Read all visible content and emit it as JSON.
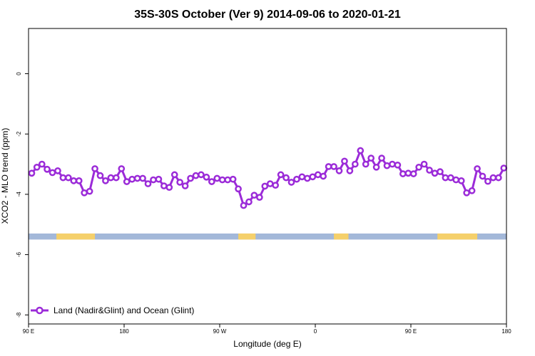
{
  "chart_data": {
    "type": "line",
    "title": "35S-30S October (Ver 9)   2014-09-06 to 2020-01-21",
    "xlabel": "Longitude (deg E)",
    "ylabel": "XCO2 - MLO trend (ppm)",
    "xlim": [
      90,
      450
    ],
    "ylim": [
      -8.3,
      1.5
    ],
    "x_ticks": [
      {
        "value": 90,
        "label": "90 E"
      },
      {
        "value": 162,
        "label": "180"
      },
      {
        "value": 234,
        "label": "90 W"
      },
      {
        "value": 306,
        "label": "0"
      },
      {
        "value": 378,
        "label": "90 E"
      },
      {
        "value": 450,
        "label": "180"
      }
    ],
    "y_ticks": [
      {
        "value": 0,
        "label": "0"
      },
      {
        "value": -2,
        "label": "-2"
      },
      {
        "value": -4,
        "label": "-4"
      },
      {
        "value": -6,
        "label": "-6"
      },
      {
        "value": -8,
        "label": "-8"
      }
    ],
    "grid": false,
    "legend_position": "bottom-left",
    "series": [
      {
        "name": "Land (Nadir&Glint) and Ocean (Glint)",
        "color": "#9b2bd8",
        "x": [
          92.4,
          96.3,
          100.1,
          104,
          108,
          112,
          116,
          120,
          124,
          128,
          132,
          136,
          140,
          144,
          148,
          152,
          156,
          160,
          164,
          168,
          172,
          176,
          180,
          184,
          188,
          192,
          196,
          200,
          204,
          208,
          212,
          216,
          220,
          224,
          228,
          232,
          236,
          240,
          244,
          248,
          252,
          256,
          260,
          264,
          268,
          272,
          276,
          280,
          284,
          288,
          292,
          296,
          300,
          304,
          308,
          312,
          316,
          320,
          324,
          328,
          332,
          336,
          340,
          344,
          348,
          352,
          356,
          360,
          364,
          368,
          372,
          376,
          380,
          384,
          388,
          392,
          396,
          400,
          404,
          408,
          412,
          416,
          420,
          424,
          428,
          432,
          436,
          440,
          444,
          448
        ],
        "y": [
          -3.3,
          -3.1,
          -3.0,
          -3.17,
          -3.28,
          -3.22,
          -3.45,
          -3.45,
          -3.55,
          -3.55,
          -3.95,
          -3.9,
          -3.15,
          -3.38,
          -3.55,
          -3.45,
          -3.45,
          -3.15,
          -3.58,
          -3.5,
          -3.47,
          -3.47,
          -3.65,
          -3.52,
          -3.5,
          -3.72,
          -3.77,
          -3.35,
          -3.6,
          -3.72,
          -3.47,
          -3.38,
          -3.35,
          -3.43,
          -3.58,
          -3.47,
          -3.52,
          -3.52,
          -3.5,
          -3.82,
          -4.37,
          -4.25,
          -4.03,
          -4.1,
          -3.73,
          -3.65,
          -3.7,
          -3.35,
          -3.45,
          -3.6,
          -3.5,
          -3.42,
          -3.47,
          -3.42,
          -3.35,
          -3.4,
          -3.08,
          -3.08,
          -3.22,
          -2.9,
          -3.22,
          -3.0,
          -2.55,
          -3.0,
          -2.8,
          -3.1,
          -2.8,
          -3.05,
          -3.0,
          -3.03,
          -3.32,
          -3.3,
          -3.32,
          -3.1,
          -3.0,
          -3.2,
          -3.3,
          -3.25,
          -3.45,
          -3.45,
          -3.52,
          -3.55,
          -3.95,
          -3.88,
          -3.15,
          -3.4,
          -3.57,
          -3.45,
          -3.45,
          -3.13
        ]
      }
    ],
    "land_ocean_strip": {
      "y_range": [
        -5.3,
        -5.5
      ],
      "ocean_color": "#a3b8d9",
      "land_color": "#f5d06b",
      "land_spans": [
        [
          111,
          140
        ],
        [
          248,
          261
        ],
        [
          320,
          331
        ],
        [
          398,
          428
        ]
      ]
    }
  }
}
